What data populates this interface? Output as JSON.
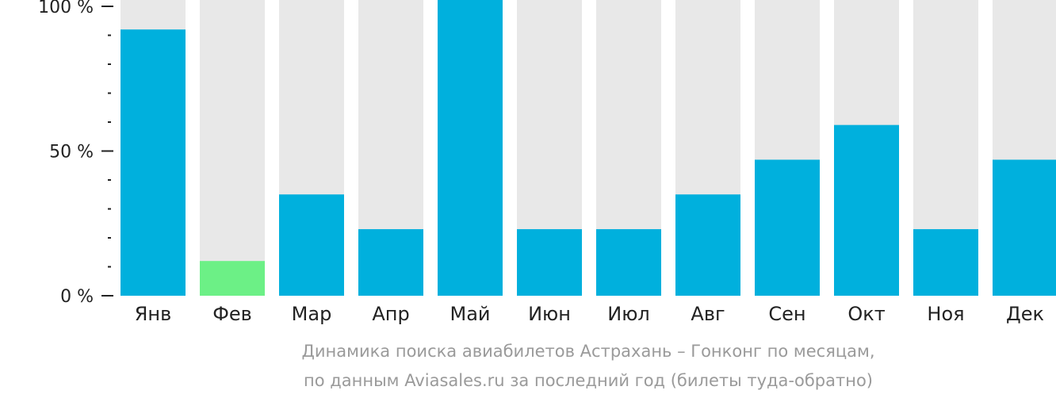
{
  "chart_data": {
    "type": "bar",
    "categories": [
      "Янв",
      "Фев",
      "Мар",
      "Апр",
      "Май",
      "Июн",
      "Июл",
      "Авг",
      "Сен",
      "Окт",
      "Ноя",
      "Дек"
    ],
    "values": [
      92,
      12,
      35,
      23,
      100,
      23,
      23,
      35,
      47,
      59,
      23,
      47
    ],
    "ylim": [
      0,
      100
    ],
    "yticks": [
      0,
      50,
      100
    ],
    "ytick_labels": [
      "0 %",
      "50 %",
      "100 %"
    ],
    "minor_ticks_per_interval": 5,
    "highlight_category": "Фев",
    "colors": {
      "bar": "#00b0dd",
      "highlight": "#6cf086",
      "background_bar": "#e8e8e8",
      "axis": "#222222"
    }
  },
  "caption": {
    "line1": "Динамика поиска авиабилетов Астрахань – Гонконг по месяцам,",
    "line2": "по данным Aviasales.ru за последний год (билеты туда-обратно)"
  }
}
